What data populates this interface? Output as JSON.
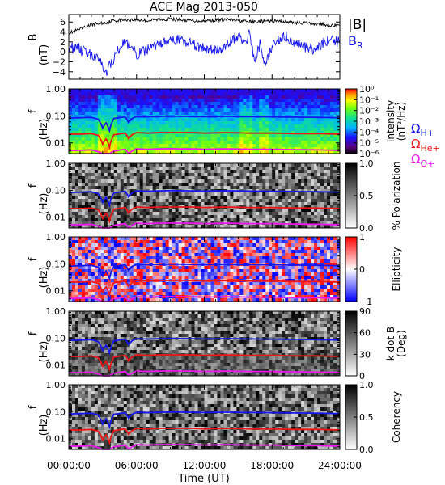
{
  "chart_data": {
    "title": "ACE Mag 2013-050",
    "xlabel": "Time (UT)",
    "xlim": [
      0,
      24
    ],
    "x_tick_labels": [
      "00:00:00",
      "06:00:00",
      "12:00:00",
      "18:00:00",
      "24:00:00"
    ],
    "x_ticks": [
      0,
      6,
      12,
      18,
      24
    ],
    "panels": [
      {
        "type": "line",
        "ylabel": "B",
        "yunit": "(nT)",
        "ylim": [
          -5.5,
          7.5
        ],
        "y_ticks": [
          -4,
          -2,
          0,
          2,
          4,
          6
        ],
        "y_tick_labels": [
          "−4",
          "−2",
          "0",
          "2",
          "4",
          "6"
        ],
        "series": [
          {
            "name": "|B|",
            "color": "#000000",
            "x": [
              0,
              1,
              2,
              3,
              3.5,
              4,
              5,
              6,
              7,
              8,
              9,
              10,
              11,
              12,
              13,
              14,
              15,
              16,
              17,
              18,
              19,
              20,
              21,
              22,
              23,
              24
            ],
            "values": [
              3.8,
              4.5,
              5.5,
              5.8,
              6.0,
              6.3,
              6.5,
              6.4,
              6.3,
              6.5,
              6.6,
              6.4,
              6.3,
              6.2,
              6.4,
              6.5,
              6.3,
              6.0,
              6.1,
              6.2,
              6.1,
              5.9,
              5.8,
              5.6,
              5.4,
              5.2
            ]
          },
          {
            "name": "BR",
            "label_main": "B",
            "label_sub": "R",
            "color": "#1010ee",
            "x": [
              0,
              1,
              2,
              2.5,
              3,
              3.4,
              3.8,
              4.5,
              5,
              6,
              7,
              8,
              9,
              10,
              11,
              12,
              13,
              14,
              15,
              15.5,
              16,
              16.5,
              17,
              17.3,
              18,
              19,
              20,
              21,
              22,
              23,
              24
            ],
            "values": [
              1.0,
              0.5,
              -0.5,
              -1.5,
              -2.5,
              -4.0,
              -2.0,
              1.0,
              2.0,
              -0.5,
              0.5,
              1.5,
              2.0,
              2.5,
              1.5,
              0.5,
              0.0,
              1.5,
              3.5,
              1.0,
              4.0,
              -2.0,
              2.0,
              -3.0,
              1.0,
              3.5,
              2.0,
              1.0,
              0.5,
              2.5,
              2.0
            ]
          }
        ]
      },
      {
        "type": "heatmap",
        "ylabel": "f",
        "yunit": "(Hz)",
        "ylim": [
          0.004,
          1.0
        ],
        "y_ticks": [
          1.0,
          0.1,
          0.01
        ],
        "y_tick_labels": [
          "1.00",
          "0.10",
          "0.01"
        ],
        "colorbar": {
          "label": "Intensity",
          "unit": "(nT²/Hz)",
          "scale": "rainbow",
          "tick_values": [
            0,
            -1,
            -2,
            -3,
            -4,
            -5,
            -6
          ],
          "tick_labels": [
            "10⁰",
            "10⁻¹",
            "10⁻²",
            "10⁻³",
            "10⁻⁴",
            "10⁻⁵",
            "10⁻⁶"
          ]
        },
        "legend": [
          {
            "symbol": "Ω",
            "sub": "H+",
            "color": "#1515ee"
          },
          {
            "symbol": "Ω",
            "sub": "He+",
            "color": "#ee1515"
          },
          {
            "symbol": "Ω",
            "sub": "O+",
            "color": "#ee15ee"
          }
        ]
      },
      {
        "type": "heatmap",
        "ylabel": "f",
        "yunit": "(Hz)",
        "ylim": [
          0.004,
          1.0
        ],
        "y_ticks": [
          1.0,
          0.1,
          0.01
        ],
        "y_tick_labels": [
          "1.00",
          "0.10",
          "0.01"
        ],
        "colorbar": {
          "label": "% Polarization",
          "unit": "",
          "scale": "gray",
          "tick_values": [
            1.0,
            0.5,
            0.0
          ],
          "tick_labels": [
            "1.0",
            "0.5",
            "0.0"
          ]
        }
      },
      {
        "type": "heatmap",
        "ylabel": "f",
        "yunit": "(Hz)",
        "ylim": [
          0.004,
          1.0
        ],
        "y_ticks": [
          1.0,
          0.1,
          0.01
        ],
        "y_tick_labels": [
          "1.00",
          "0.10",
          "0.01"
        ],
        "colorbar": {
          "label": "Ellipticity",
          "unit": "",
          "scale": "bwr",
          "tick_values": [
            1,
            0,
            -1
          ],
          "tick_labels": [
            "1",
            "0",
            "−1"
          ]
        }
      },
      {
        "type": "heatmap",
        "ylabel": "f",
        "yunit": "(Hz)",
        "ylim": [
          0.004,
          1.0
        ],
        "y_ticks": [
          1.0,
          0.1,
          0.01
        ],
        "y_tick_labels": [
          "1.00",
          "0.10",
          "0.01"
        ],
        "colorbar": {
          "label": "k dot B",
          "unit": "(Deg)",
          "scale": "gray",
          "tick_values": [
            90,
            60,
            30,
            0
          ],
          "tick_labels": [
            "90",
            "60",
            "30",
            "0"
          ]
        }
      },
      {
        "type": "heatmap",
        "ylabel": "f",
        "yunit": "(Hz)",
        "ylim": [
          0.004,
          1.0
        ],
        "y_ticks": [
          1.0,
          0.1,
          0.01
        ],
        "y_tick_labels": [
          "1.00",
          "0.10",
          "0.01"
        ],
        "colorbar": {
          "label": "Coherency",
          "unit": "",
          "scale": "gray",
          "tick_values": [
            1.0,
            0.5,
            0.0
          ],
          "tick_labels": [
            "1.0",
            "0.5",
            "0.0"
          ]
        }
      }
    ],
    "gyrofrequency_lines": [
      {
        "name": "H+",
        "color": "#1515ee",
        "x": [
          0,
          1,
          2,
          2.6,
          3.0,
          3.3,
          3.6,
          4.0,
          5,
          5.3,
          5.6,
          6,
          7,
          8,
          9,
          10,
          11,
          12,
          14,
          16,
          18,
          20,
          22,
          24
        ],
        "f": [
          0.082,
          0.085,
          0.088,
          0.075,
          0.035,
          0.055,
          0.028,
          0.08,
          0.092,
          0.055,
          0.08,
          0.095,
          0.092,
          0.095,
          0.097,
          0.096,
          0.095,
          0.093,
          0.096,
          0.093,
          0.092,
          0.09,
          0.088,
          0.085
        ]
      },
      {
        "name": "He+",
        "color": "#ee1515",
        "x": [
          0,
          1,
          2,
          2.6,
          3.0,
          3.3,
          3.6,
          4.0,
          5,
          5.3,
          5.6,
          6,
          7,
          8,
          9,
          10,
          11,
          12,
          14,
          16,
          18,
          20,
          22,
          24
        ],
        "f": [
          0.021,
          0.021,
          0.022,
          0.019,
          0.009,
          0.014,
          0.007,
          0.02,
          0.023,
          0.014,
          0.02,
          0.024,
          0.023,
          0.024,
          0.024,
          0.024,
          0.024,
          0.023,
          0.024,
          0.023,
          0.023,
          0.022,
          0.022,
          0.021
        ]
      },
      {
        "name": "O+",
        "color": "#ee15ee",
        "x": [
          0,
          1,
          2,
          2.6,
          3.0,
          3.3,
          3.6,
          4.0,
          5,
          5.3,
          5.6,
          6,
          7,
          8,
          9,
          10,
          11,
          12,
          14,
          16,
          18,
          20,
          22,
          24
        ],
        "f": [
          0.0052,
          0.0053,
          0.0055,
          0.0047,
          0.004,
          0.004,
          0.004,
          0.005,
          0.0058,
          0.004,
          0.005,
          0.006,
          0.0058,
          0.006,
          0.0061,
          0.006,
          0.006,
          0.0058,
          0.006,
          0.0058,
          0.0058,
          0.0056,
          0.0055,
          0.0053
        ]
      }
    ]
  }
}
